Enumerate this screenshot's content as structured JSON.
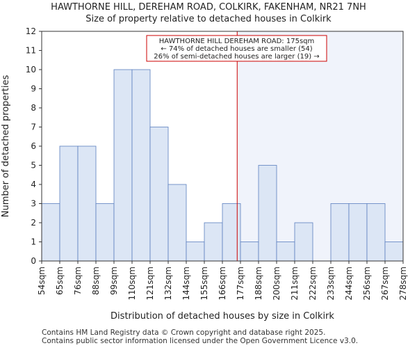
{
  "title_line1": "HAWTHORNE HILL, DEREHAM ROAD, COLKIRK, FAKENHAM, NR21 7NH",
  "title_line2": "Size of property relative to detached houses in Colkirk",
  "footer_line1": "Contains HM Land Registry data © Crown copyright and database right 2025.",
  "footer_line2": "Contains public sector information licensed under the Open Government Licence v3.0.",
  "chart_data": {
    "type": "bar",
    "xlabel": "Distribution of detached houses by size in Colkirk",
    "ylabel": "Number of detached properties",
    "ylim": [
      0,
      12
    ],
    "yticks": [
      0,
      1,
      2,
      3,
      4,
      5,
      6,
      7,
      8,
      9,
      10,
      11,
      12
    ],
    "bin_edges": [
      54,
      65,
      76,
      88,
      99,
      110,
      121,
      132,
      144,
      155,
      166,
      177,
      188,
      200,
      211,
      222,
      233,
      244,
      256,
      267,
      278
    ],
    "xtick_labels": [
      "54sqm",
      "65sqm",
      "76sqm",
      "88sqm",
      "99sqm",
      "110sqm",
      "121sqm",
      "132sqm",
      "144sqm",
      "155sqm",
      "166sqm",
      "177sqm",
      "188sqm",
      "200sqm",
      "211sqm",
      "222sqm",
      "233sqm",
      "244sqm",
      "256sqm",
      "267sqm",
      "278sqm"
    ],
    "values": [
      3,
      6,
      6,
      3,
      10,
      10,
      7,
      4,
      1,
      2,
      3,
      1,
      5,
      1,
      2,
      0,
      3,
      3,
      3,
      1
    ],
    "marker_value": 175,
    "annotation": {
      "line1": "HAWTHORNE HILL DEREHAM ROAD: 175sqm",
      "line2": "← 74% of detached houses are smaller (54)",
      "line3": "26% of semi-detached houses are larger (19) →"
    },
    "colors": {
      "bar_fill": "#dce6f5",
      "bar_stroke": "#5b7fbf",
      "marker": "#cc0000",
      "highlight_region": "#f0f3fb"
    }
  }
}
